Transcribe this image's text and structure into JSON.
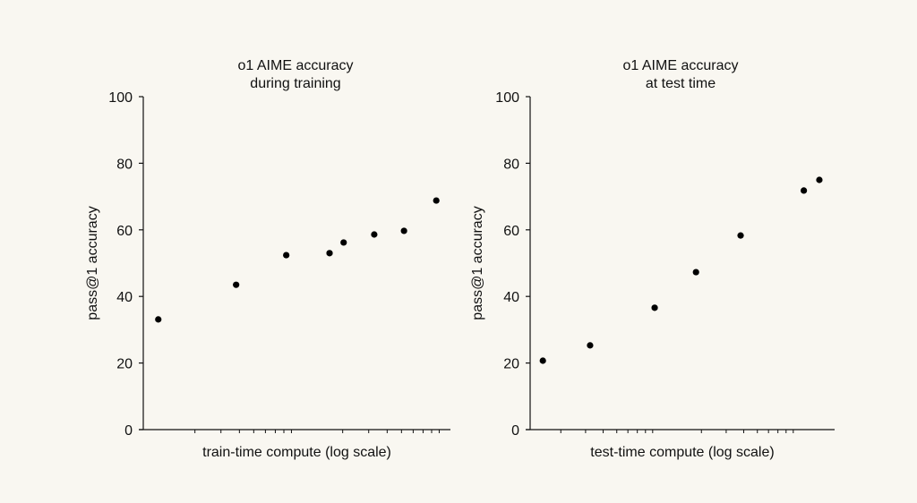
{
  "chart_data": [
    {
      "type": "scatter",
      "title": [
        "o1 AIME accuracy",
        "during training"
      ],
      "xlabel": "train-time compute (log scale)",
      "ylabel": "pass@1 accuracy",
      "xscale": "log",
      "xlim": [
        0.8,
        110
      ],
      "ylim": [
        0,
        100
      ],
      "yticks": [
        0,
        20,
        40,
        60,
        80,
        100
      ],
      "grid": false,
      "points": [
        {
          "x": 1.13,
          "y": 33.1
        },
        {
          "x": 3.8,
          "y": 43.5
        },
        {
          "x": 8.3,
          "y": 52.4
        },
        {
          "x": 16.3,
          "y": 53.0
        },
        {
          "x": 20.3,
          "y": 56.2
        },
        {
          "x": 32.7,
          "y": 58.6
        },
        {
          "x": 52,
          "y": 59.7
        },
        {
          "x": 86,
          "y": 68.8
        }
      ]
    },
    {
      "type": "scatter",
      "title": [
        "o1 AIME accuracy",
        "at test time"
      ],
      "xlabel": "test-time compute (log scale)",
      "ylabel": "pass@1 accuracy",
      "xscale": "log",
      "xlim": [
        1.0,
        180
      ],
      "ylim": [
        0,
        100
      ],
      "yticks": [
        0,
        20,
        40,
        60,
        80,
        100
      ],
      "grid": false,
      "points": [
        {
          "x": 1.49,
          "y": 20.7
        },
        {
          "x": 3.23,
          "y": 25.3
        },
        {
          "x": 9.3,
          "y": 36.6
        },
        {
          "x": 18.3,
          "y": 47.3
        },
        {
          "x": 38,
          "y": 58.3
        },
        {
          "x": 107,
          "y": 71.8
        },
        {
          "x": 138,
          "y": 75.0
        }
      ]
    }
  ]
}
